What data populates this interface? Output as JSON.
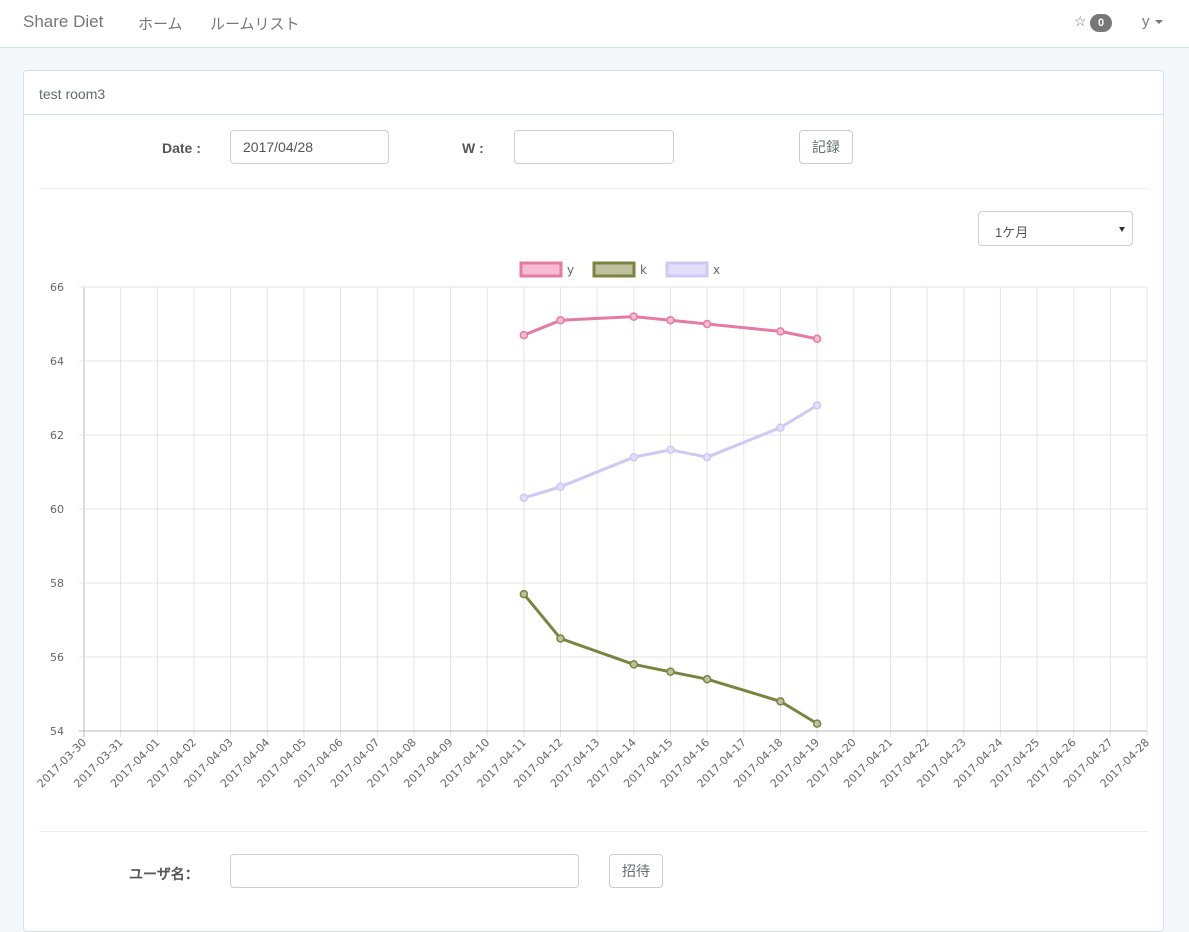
{
  "navbar": {
    "brand": "Share Diet",
    "links": [
      "ホーム",
      "ルームリスト"
    ],
    "star": "☆",
    "badge_count": "0",
    "user": "y"
  },
  "room": {
    "title": "test room3",
    "date_label": "Date :",
    "date_value": "2017/04/28",
    "weight_label": "W :",
    "weight_value": "",
    "record_button": "記録",
    "period_select": "1ケ月",
    "username_label": "ユーザ名：",
    "username_value": "",
    "invite_button": "招待"
  },
  "chart_data": {
    "type": "line",
    "x": [
      "2017-03-30",
      "2017-03-31",
      "2017-04-01",
      "2017-04-02",
      "2017-04-03",
      "2017-04-04",
      "2017-04-05",
      "2017-04-06",
      "2017-04-07",
      "2017-04-08",
      "2017-04-09",
      "2017-04-10",
      "2017-04-11",
      "2017-04-12",
      "2017-04-13",
      "2017-04-14",
      "2017-04-15",
      "2017-04-16",
      "2017-04-17",
      "2017-04-18",
      "2017-04-19",
      "2017-04-20",
      "2017-04-21",
      "2017-04-22",
      "2017-04-23",
      "2017-04-24",
      "2017-04-25",
      "2017-04-26",
      "2017-04-27",
      "2017-04-28"
    ],
    "ylim": [
      54,
      66
    ],
    "yticks": [
      54,
      56,
      58,
      60,
      62,
      64,
      66
    ],
    "grid": true,
    "legend_position": "top",
    "series": [
      {
        "name": "y",
        "color": "#e57aa3",
        "fill": "#f7bcd2",
        "points": [
          [
            "2017-04-11",
            64.7
          ],
          [
            "2017-04-12",
            65.1
          ],
          [
            "2017-04-14",
            65.2
          ],
          [
            "2017-04-15",
            65.1
          ],
          [
            "2017-04-16",
            65.0
          ],
          [
            "2017-04-18",
            64.8
          ],
          [
            "2017-04-19",
            64.6
          ]
        ]
      },
      {
        "name": "k",
        "color": "#7a8440",
        "fill": "#bfc19e",
        "points": [
          [
            "2017-04-11",
            57.7
          ],
          [
            "2017-04-12",
            56.5
          ],
          [
            "2017-04-14",
            55.8
          ],
          [
            "2017-04-15",
            55.6
          ],
          [
            "2017-04-16",
            55.4
          ],
          [
            "2017-04-18",
            54.8
          ],
          [
            "2017-04-19",
            54.2
          ]
        ]
      },
      {
        "name": "x",
        "color": "#cfc8f5",
        "fill": "#e3dffa",
        "points": [
          [
            "2017-04-11",
            60.3
          ],
          [
            "2017-04-12",
            60.6
          ],
          [
            "2017-04-14",
            61.4
          ],
          [
            "2017-04-15",
            61.6
          ],
          [
            "2017-04-16",
            61.4
          ],
          [
            "2017-04-18",
            62.2
          ],
          [
            "2017-04-19",
            62.8
          ]
        ]
      }
    ]
  }
}
